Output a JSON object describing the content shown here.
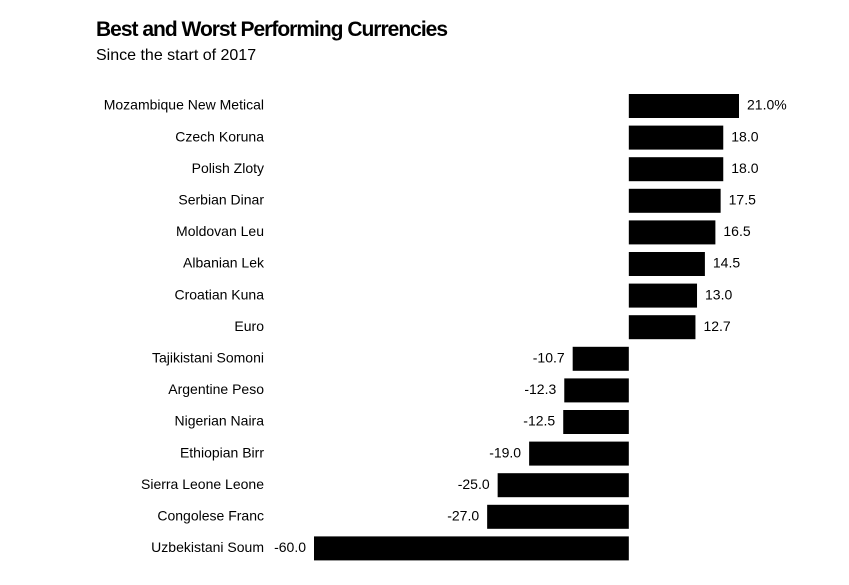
{
  "chart_data": {
    "type": "bar",
    "orientation": "horizontal",
    "title": "Best and Worst Performing Currencies",
    "subtitle": "Since the start of 2017",
    "categories": [
      "Mozambique New Metical",
      "Czech Koruna",
      "Polish Zloty",
      "Serbian Dinar",
      "Moldovan Leu",
      "Albanian Lek",
      "Croatian Kuna",
      "Euro",
      "Tajikistani Somoni",
      "Argentine Peso",
      "Nigerian Naira",
      "Ethiopian Birr",
      "Sierra Leone Leone",
      "Congolese Franc",
      "Uzbekistani Soum"
    ],
    "values": [
      21.0,
      18.0,
      18.0,
      17.5,
      16.5,
      14.5,
      13.0,
      12.7,
      -10.7,
      -12.3,
      -12.5,
      -19.0,
      -25.0,
      -27.0,
      -60.0
    ],
    "value_labels": [
      "21.0%",
      "18.0",
      "18.0",
      "17.5",
      "16.5",
      "14.5",
      "13.0",
      "12.7",
      "-10.7",
      "-12.3",
      "-12.5",
      "-19.0",
      "-25.0",
      "-27.0",
      "-60.0"
    ],
    "color": "#000000"
  }
}
